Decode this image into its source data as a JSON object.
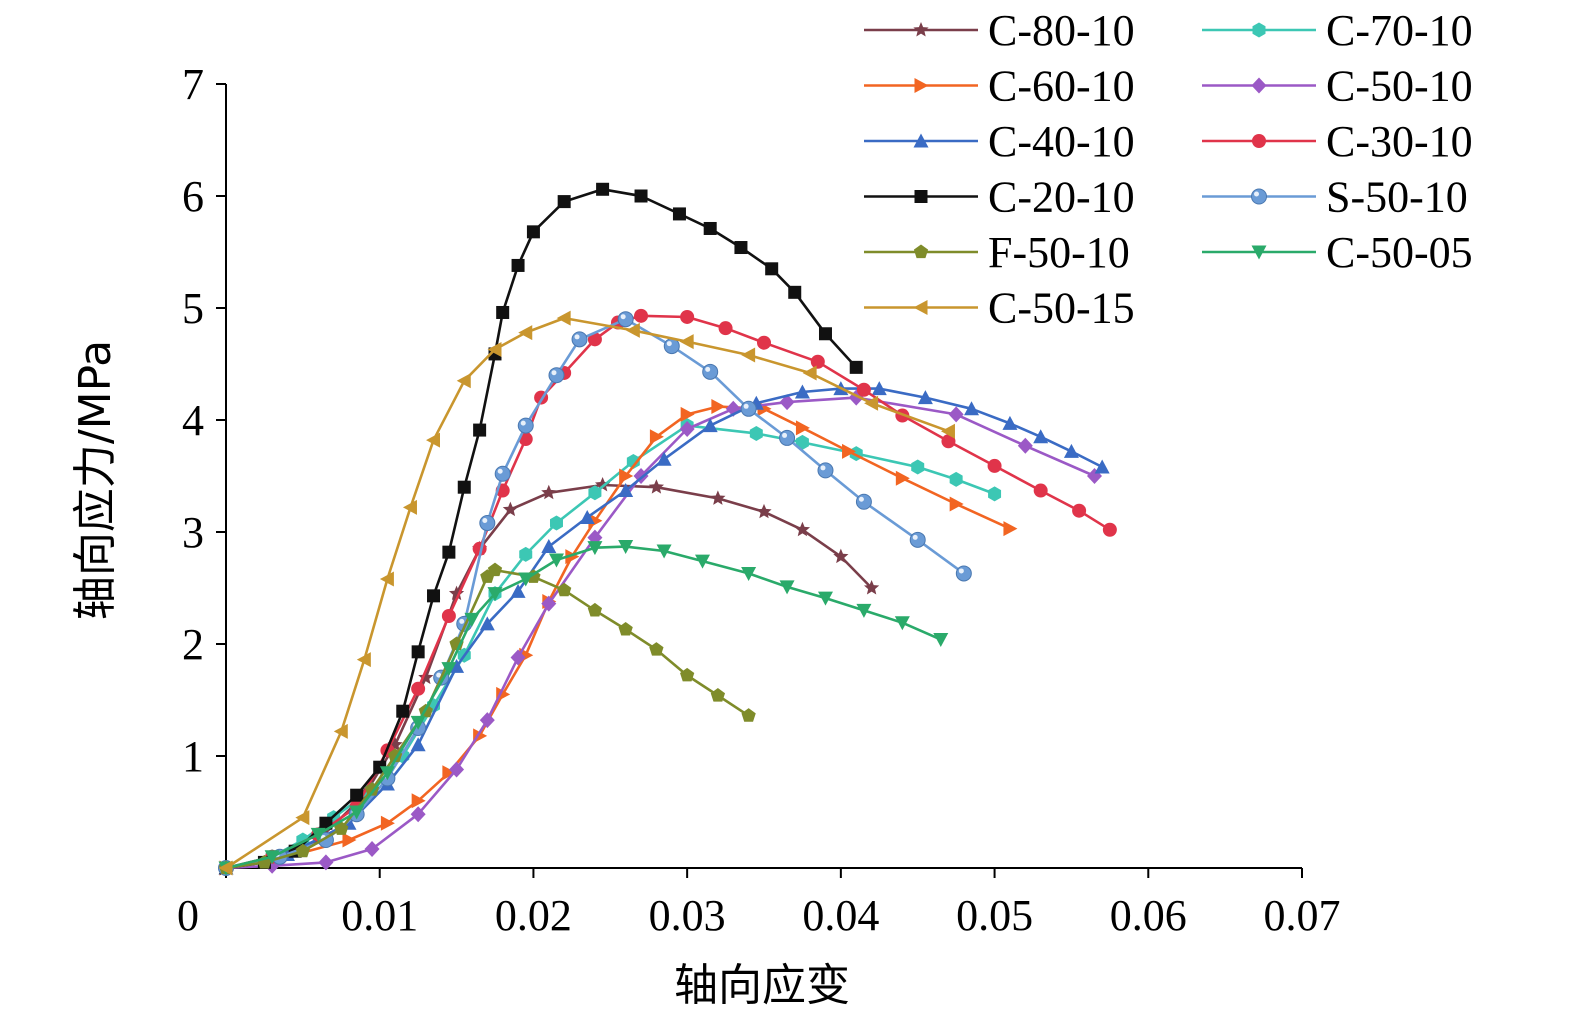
{
  "chart_data": {
    "type": "line",
    "title": "",
    "xlabel": "轴向应变",
    "ylabel": "轴向应力/MPa",
    "xlim": [
      0,
      0.07
    ],
    "ylim": [
      0,
      7
    ],
    "xticks": [
      0,
      0.01,
      0.02,
      0.03,
      0.04,
      0.05,
      0.06,
      0.07
    ],
    "xtick_labels": [
      "0",
      "0.01",
      "0.02",
      "0.03",
      "0.04",
      "0.05",
      "0.06",
      "0.07"
    ],
    "yticks": [
      1,
      2,
      3,
      4,
      5,
      6,
      7
    ],
    "ytick_labels": [
      "1",
      "2",
      "3",
      "4",
      "5",
      "6",
      "7"
    ],
    "grid": false,
    "legend_position": "top-right",
    "series": [
      {
        "name": "C-80-10",
        "color": "#7a3e4a",
        "marker": "star",
        "x": [
          0.0,
          0.003,
          0.006,
          0.009,
          0.011,
          0.013,
          0.015,
          0.0165,
          0.0185,
          0.021,
          0.0245,
          0.028,
          0.032,
          0.035,
          0.0375,
          0.04,
          0.042
        ],
        "y": [
          0.0,
          0.08,
          0.25,
          0.65,
          1.1,
          1.7,
          2.45,
          2.85,
          3.2,
          3.35,
          3.42,
          3.4,
          3.3,
          3.18,
          3.02,
          2.78,
          2.5
        ]
      },
      {
        "name": "C-70-10",
        "color": "#3cc7b4",
        "marker": "hexagon",
        "x": [
          0.0,
          0.003,
          0.005,
          0.007,
          0.0095,
          0.0115,
          0.0135,
          0.0155,
          0.0175,
          0.0195,
          0.0215,
          0.024,
          0.0265,
          0.03,
          0.0345,
          0.0375,
          0.041,
          0.045,
          0.0475,
          0.05
        ],
        "y": [
          0.0,
          0.1,
          0.25,
          0.45,
          0.7,
          1.0,
          1.45,
          1.9,
          2.45,
          2.8,
          3.08,
          3.35,
          3.63,
          3.95,
          3.88,
          3.8,
          3.7,
          3.58,
          3.47,
          3.34
        ]
      },
      {
        "name": "C-60-10",
        "color": "#f26522",
        "marker": "triangle-right",
        "x": [
          0.0,
          0.004,
          0.008,
          0.0105,
          0.0125,
          0.0145,
          0.0165,
          0.018,
          0.0195,
          0.021,
          0.0225,
          0.024,
          0.026,
          0.028,
          0.03,
          0.032,
          0.035,
          0.0375,
          0.0405,
          0.044,
          0.0475,
          0.051
        ],
        "y": [
          0.0,
          0.1,
          0.25,
          0.4,
          0.6,
          0.85,
          1.18,
          1.55,
          1.9,
          2.38,
          2.78,
          3.1,
          3.5,
          3.85,
          4.05,
          4.12,
          4.1,
          3.93,
          3.72,
          3.48,
          3.25,
          3.03
        ]
      },
      {
        "name": "C-50-10",
        "color": "#9b59c6",
        "marker": "diamond",
        "x": [
          0.0,
          0.003,
          0.0065,
          0.0095,
          0.0125,
          0.015,
          0.017,
          0.019,
          0.021,
          0.024,
          0.027,
          0.03,
          0.033,
          0.0365,
          0.041,
          0.0475,
          0.052,
          0.0565
        ],
        "y": [
          0.0,
          0.02,
          0.05,
          0.17,
          0.48,
          0.88,
          1.32,
          1.88,
          2.36,
          2.95,
          3.5,
          3.92,
          4.1,
          4.16,
          4.2,
          4.05,
          3.77,
          3.5
        ]
      },
      {
        "name": "C-40-10",
        "color": "#3a6bc4",
        "marker": "triangle-up",
        "x": [
          0.0,
          0.004,
          0.008,
          0.0105,
          0.0125,
          0.015,
          0.017,
          0.019,
          0.021,
          0.0235,
          0.026,
          0.0285,
          0.0315,
          0.0345,
          0.0375,
          0.04,
          0.0425,
          0.0455,
          0.0485,
          0.051,
          0.053,
          0.055,
          0.057
        ],
        "y": [
          0.0,
          0.12,
          0.4,
          0.75,
          1.1,
          1.8,
          2.18,
          2.47,
          2.87,
          3.13,
          3.37,
          3.65,
          3.95,
          4.15,
          4.25,
          4.28,
          4.28,
          4.2,
          4.1,
          3.97,
          3.85,
          3.72,
          3.58
        ]
      },
      {
        "name": "C-30-10",
        "color": "#e0344a",
        "marker": "circle",
        "x": [
          0.0,
          0.003,
          0.006,
          0.0085,
          0.0105,
          0.0125,
          0.0145,
          0.0165,
          0.018,
          0.0195,
          0.0205,
          0.022,
          0.024,
          0.0255,
          0.027,
          0.03,
          0.0325,
          0.035,
          0.0385,
          0.0415,
          0.044,
          0.047,
          0.05,
          0.053,
          0.0555,
          0.0575
        ],
        "y": [
          0.0,
          0.1,
          0.3,
          0.55,
          1.05,
          1.6,
          2.25,
          2.85,
          3.37,
          3.83,
          4.2,
          4.42,
          4.72,
          4.87,
          4.93,
          4.92,
          4.82,
          4.69,
          4.52,
          4.27,
          4.04,
          3.81,
          3.59,
          3.37,
          3.19,
          3.02
        ]
      },
      {
        "name": "C-20-10",
        "color": "#111111",
        "marker": "square",
        "x": [
          0.0,
          0.0025,
          0.0045,
          0.0065,
          0.0085,
          0.01,
          0.0115,
          0.0125,
          0.0135,
          0.0145,
          0.0155,
          0.0165,
          0.0175,
          0.018,
          0.019,
          0.02,
          0.022,
          0.0245,
          0.027,
          0.0295,
          0.0315,
          0.0335,
          0.0355,
          0.037,
          0.039,
          0.041
        ],
        "y": [
          0.0,
          0.05,
          0.15,
          0.4,
          0.65,
          0.9,
          1.4,
          1.93,
          2.43,
          2.82,
          3.4,
          3.91,
          4.59,
          4.96,
          5.38,
          5.68,
          5.95,
          6.06,
          6.0,
          5.84,
          5.71,
          5.54,
          5.35,
          5.14,
          4.77,
          4.47
        ]
      },
      {
        "name": "S-50-10",
        "color": "#6a9bd6",
        "marker": "ball",
        "x": [
          0.0,
          0.0035,
          0.0065,
          0.0085,
          0.0105,
          0.0125,
          0.014,
          0.0155,
          0.017,
          0.018,
          0.0195,
          0.0215,
          0.023,
          0.026,
          0.029,
          0.0315,
          0.034,
          0.0365,
          0.039,
          0.0415,
          0.045,
          0.048
        ],
        "y": [
          0.0,
          0.1,
          0.25,
          0.48,
          0.8,
          1.25,
          1.7,
          2.18,
          3.08,
          3.52,
          3.95,
          4.4,
          4.72,
          4.9,
          4.66,
          4.43,
          4.1,
          3.84,
          3.55,
          3.27,
          2.93,
          2.63
        ]
      },
      {
        "name": "F-50-10",
        "color": "#7f8c2a",
        "marker": "pentagon",
        "x": [
          0.0,
          0.0025,
          0.005,
          0.0075,
          0.0095,
          0.011,
          0.013,
          0.015,
          0.017,
          0.0175,
          0.02,
          0.022,
          0.024,
          0.026,
          0.028,
          0.03,
          0.032,
          0.034
        ],
        "y": [
          0.0,
          0.05,
          0.15,
          0.35,
          0.7,
          1.0,
          1.4,
          2.0,
          2.6,
          2.66,
          2.6,
          2.48,
          2.3,
          2.13,
          1.95,
          1.72,
          1.54,
          1.36
        ]
      },
      {
        "name": "C-50-05",
        "color": "#2aaa6a",
        "marker": "triangle-down",
        "x": [
          0.0,
          0.003,
          0.006,
          0.0085,
          0.0105,
          0.0125,
          0.0145,
          0.016,
          0.0175,
          0.0195,
          0.0215,
          0.024,
          0.026,
          0.0285,
          0.031,
          0.034,
          0.0365,
          0.039,
          0.0415,
          0.044,
          0.0465
        ],
        "y": [
          0.0,
          0.1,
          0.3,
          0.5,
          0.85,
          1.3,
          1.78,
          2.22,
          2.45,
          2.58,
          2.75,
          2.86,
          2.87,
          2.83,
          2.74,
          2.63,
          2.51,
          2.41,
          2.3,
          2.19,
          2.04
        ]
      },
      {
        "name": "C-50-15",
        "color": "#c9962e",
        "marker": "triangle-left",
        "x": [
          0.0,
          0.005,
          0.0075,
          0.009,
          0.0105,
          0.012,
          0.0135,
          0.0155,
          0.0175,
          0.0195,
          0.022,
          0.0265,
          0.03,
          0.034,
          0.038,
          0.042,
          0.047
        ],
        "y": [
          0.0,
          0.45,
          1.22,
          1.86,
          2.58,
          3.22,
          3.82,
          4.35,
          4.63,
          4.78,
          4.91,
          4.8,
          4.7,
          4.58,
          4.42,
          4.15,
          3.9
        ]
      }
    ]
  }
}
